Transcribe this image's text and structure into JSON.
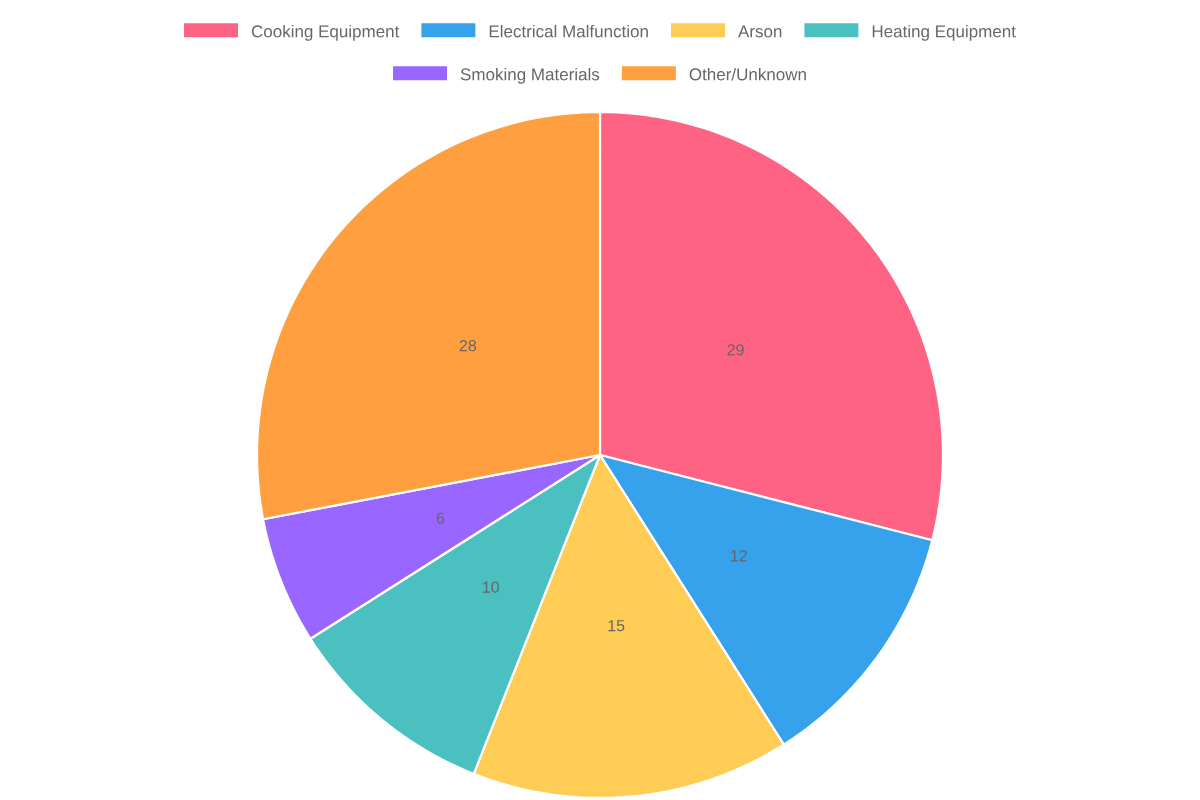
{
  "chart_data": {
    "type": "pie",
    "categories": [
      "Cooking Equipment",
      "Electrical Malfunction",
      "Arson",
      "Heating Equipment",
      "Smoking Materials",
      "Other/Unknown"
    ],
    "values": [
      29,
      12,
      15,
      10,
      6,
      28
    ],
    "colors": [
      "#ff6384",
      "#36a2eb",
      "#ffcd56",
      "#4bc0c0",
      "#9966ff",
      "#ff9f40"
    ],
    "data_labels": true,
    "legend": "top"
  }
}
